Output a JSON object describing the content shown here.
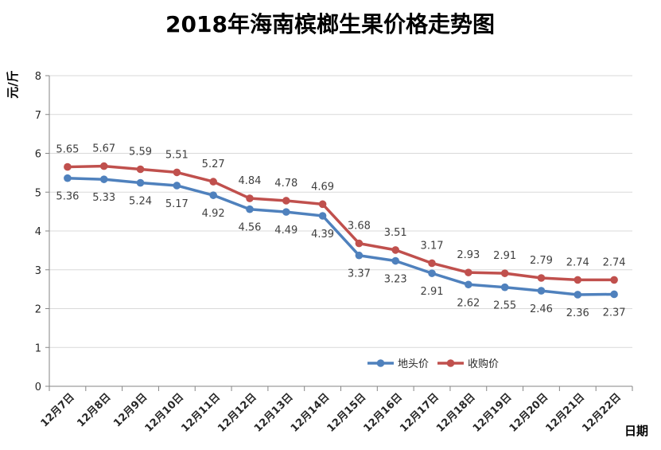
{
  "chart_data": {
    "type": "line",
    "title": "2018年海南槟榔生果价格走势图",
    "xlabel": "日期",
    "ylabel": "元/斤",
    "ylim": [
      0,
      8
    ],
    "yticks": [
      0,
      1,
      2,
      3,
      4,
      5,
      6,
      7,
      8
    ],
    "categories": [
      "12月7日",
      "12月8日",
      "12月9日",
      "12月10日",
      "12月11日",
      "12月12日",
      "12月13日",
      "12月14日",
      "12月15日",
      "12月16日",
      "12月17日",
      "12月18日",
      "12月19日",
      "12月20日",
      "12月21日",
      "12月22日"
    ],
    "series": [
      {
        "name": "地头价",
        "color": "#4F81BD",
        "values": [
          5.36,
          5.33,
          5.24,
          5.17,
          4.92,
          4.56,
          4.49,
          4.39,
          3.37,
          3.23,
          2.91,
          2.62,
          2.55,
          2.46,
          2.36,
          2.37
        ]
      },
      {
        "name": "收购价",
        "color": "#C0504D",
        "values": [
          5.65,
          5.67,
          5.59,
          5.51,
          5.27,
          4.84,
          4.78,
          4.69,
          3.68,
          3.51,
          3.17,
          2.93,
          2.91,
          2.79,
          2.74,
          2.74
        ]
      }
    ],
    "grid": true,
    "data_labels": true,
    "legend_position": "bottom-right"
  }
}
